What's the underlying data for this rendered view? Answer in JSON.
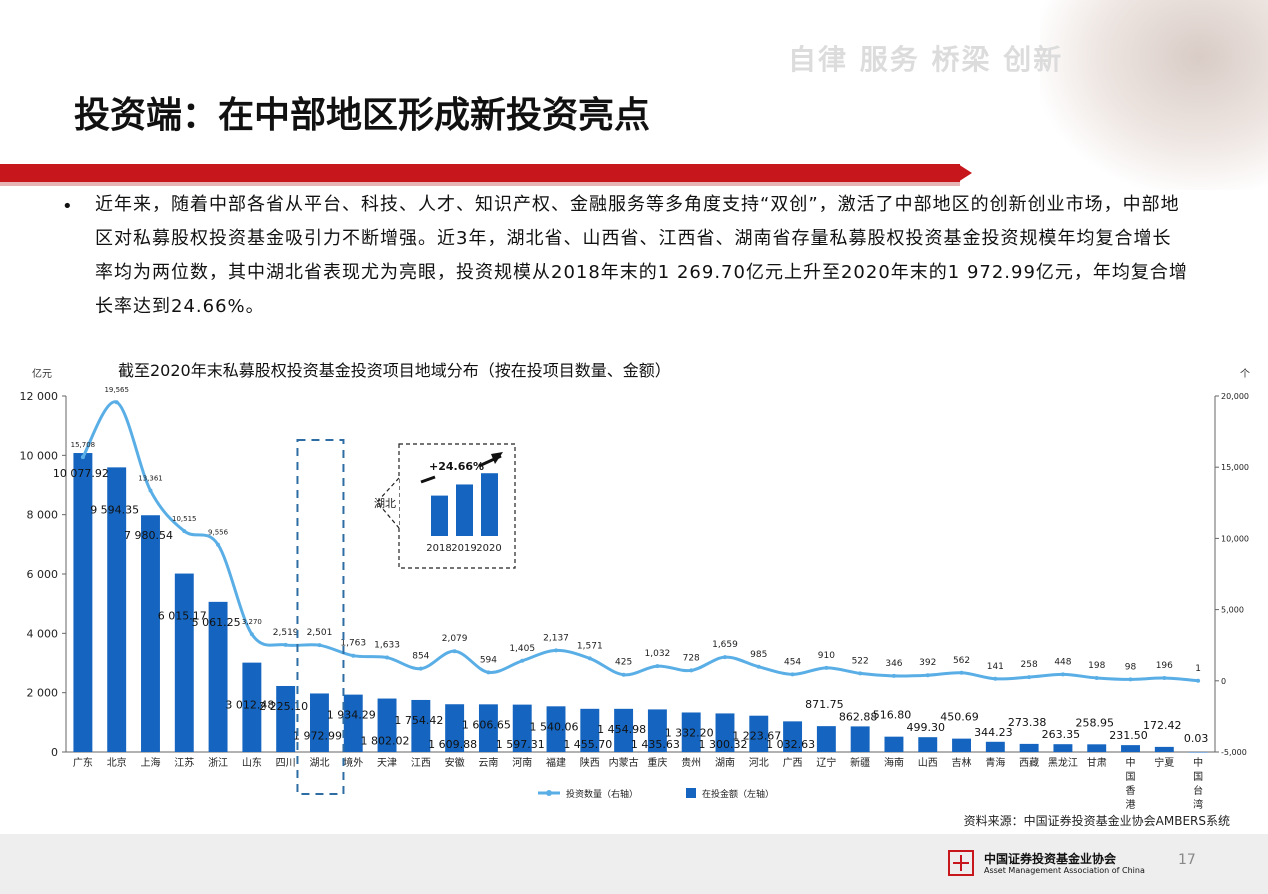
{
  "header": {
    "slogan": "自律  服务  桥梁  创新",
    "title": "投资端：在中部地区形成新投资亮点"
  },
  "body": {
    "bullet": "•",
    "paragraph": "近年来，随着中部各省从平台、科技、人才、知识产权、金融服务等多角度支持“双创”，激活了中部地区的创新创业市场，中部地区对私募股权投资基金吸引力不断增强。近3年，湖北省、山西省、江西省、湖南省存量私募股权投资基金投资规模年均复合增长率均为两位数，其中湖北省表现尤为亮眼，投资规模从2018年末的1 269.70亿元上升至2020年末的1 972.99亿元，年均复合增长率达到24.66%。"
  },
  "chart_data": {
    "type": "bar",
    "title": "截至2020年末私募股权投资基金投资项目地域分布（按在投项目数量、金额）",
    "ylabel": "亿元",
    "y2label": "个",
    "ylim": [
      0,
      12000
    ],
    "y2lim": [
      -5000,
      20000
    ],
    "yticks": [
      "0",
      "2 000",
      "4 000",
      "6 000",
      "8 000",
      "10 000",
      "12 000"
    ],
    "y2ticks": [
      "-5,000",
      "0",
      "5,000",
      "10,000",
      "15,000",
      "20,000"
    ],
    "categories": [
      "广东",
      "北京",
      "上海",
      "江苏",
      "浙江",
      "山东",
      "四川",
      "湖北",
      "境外",
      "天津",
      "江西",
      "安徽",
      "云南",
      "河南",
      "福建",
      "陕西",
      "内蒙古",
      "重庆",
      "贵州",
      "湖南",
      "河北",
      "广西",
      "辽宁",
      "新疆",
      "海南",
      "山西",
      "吉林",
      "青海",
      "西藏",
      "黑龙江",
      "甘肃",
      "中国香港",
      "宁夏",
      "中国台湾"
    ],
    "series": [
      {
        "name": "在投金额（左轴）",
        "axis": "left",
        "color": "#1565c0",
        "values": [
          10077.92,
          9594.35,
          7980.54,
          6015.17,
          5061.25,
          3012.48,
          2225.1,
          1972.99,
          1934.29,
          1802.02,
          1754.42,
          1609.88,
          1606.65,
          1597.31,
          1540.06,
          1455.7,
          1454.98,
          1435.63,
          1332.2,
          1300.32,
          1223.67,
          1032.63,
          871.75,
          862.88,
          516.8,
          499.3,
          450.69,
          344.23,
          273.38,
          263.35,
          258.95,
          231.5,
          172.42,
          0.03
        ],
        "labels": [
          "10 077.92",
          "9 594.35",
          "7 980.54",
          "6 015.17",
          "5 061.25",
          "3 012.48",
          "2 225.10",
          "1 972.99",
          "1 934.29",
          "1 802.02",
          "1 754.42",
          "1 609.88",
          "1 606.65",
          "1 597.31",
          "1 540.06",
          "1 455.70",
          "1 454.98",
          "1 435.63",
          "1 332.20",
          "1 300.32",
          "1 223.67",
          "1 032.63",
          "871.75",
          "862.88",
          "516.80",
          "499.30",
          "450.69",
          "344.23",
          "273.38",
          "263.35",
          "258.95",
          "231.50",
          "172.42",
          "0.03"
        ]
      },
      {
        "name": "投资数量（右轴）",
        "axis": "right",
        "color": "#5aaee6",
        "values": [
          15708,
          19565,
          13361,
          10515,
          9556,
          3270,
          2519,
          2501,
          1763,
          1633,
          854,
          2079,
          594,
          1405,
          2137,
          1571,
          425,
          1032,
          728,
          1659,
          985,
          454,
          910,
          522,
          346,
          392,
          562,
          141,
          258,
          448,
          198,
          98,
          196,
          1
        ],
        "labels": [
          "15,708",
          "19,565",
          "13,361",
          "10,515",
          "9,556",
          "3,270",
          "2,519",
          "2,501",
          "1,763",
          "1,633",
          "854",
          "2,079",
          "594",
          "1,405",
          "2,137",
          "1,571",
          "425",
          "1,032",
          "728",
          "1,659",
          "985",
          "454",
          "910",
          "522",
          "346",
          "392",
          "562",
          "141",
          "258",
          "448",
          "198",
          "98",
          "196",
          "1"
        ]
      }
    ],
    "inset": {
      "region": "湖北",
      "growth": "+24.66%",
      "years": [
        "2018",
        "2019",
        "2020"
      ],
      "values": [
        1269.7,
        1620,
        1972.99
      ],
      "color": "#1565c0"
    },
    "legend": "bottom-center",
    "grid": false
  },
  "footer": {
    "source": "资料来源：中国证券投资基金业协会AMBERS系统",
    "org_cn": "中国证券投资基金业协会",
    "org_en": "Asset Management Association of China",
    "page": "17"
  }
}
